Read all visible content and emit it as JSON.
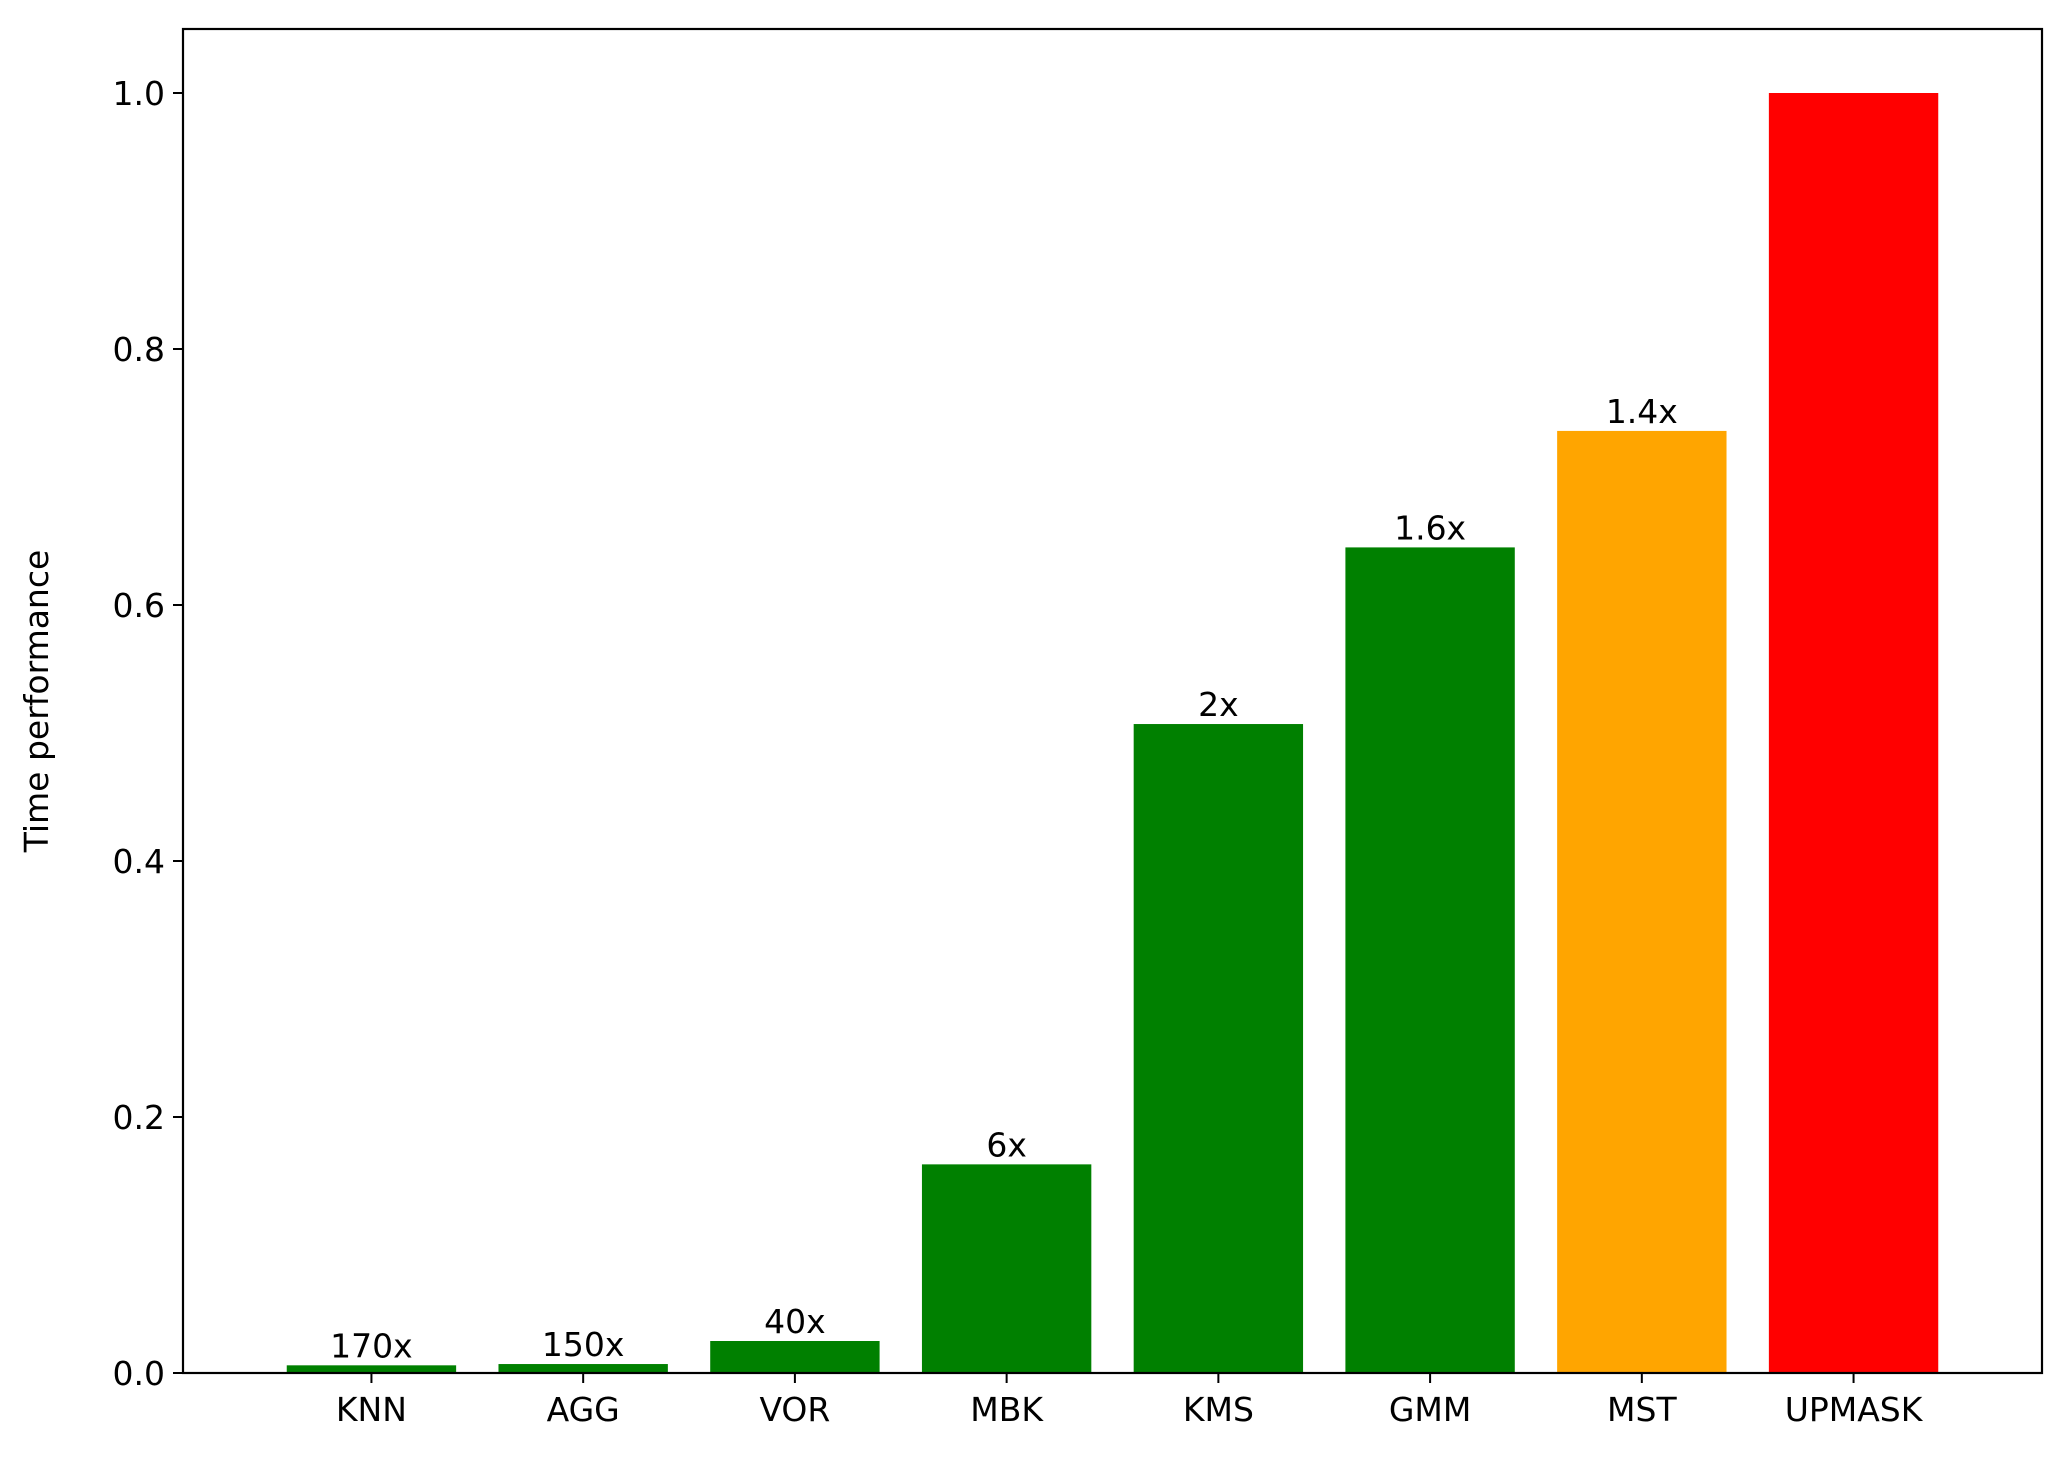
{
  "chart_data": {
    "type": "bar",
    "title": "",
    "xlabel": "",
    "ylabel": "Time performance",
    "ylim": [
      0,
      1.05
    ],
    "yticks": [
      0.0,
      0.2,
      0.4,
      0.6,
      0.8,
      1.0
    ],
    "ytick_labels": [
      "0.0",
      "0.2",
      "0.4",
      "0.6",
      "0.8",
      "1.0"
    ],
    "grid": false,
    "legend": "none",
    "categories": [
      "KNN",
      "AGG",
      "VOR",
      "MBK",
      "KMS",
      "GMM",
      "MST",
      "UPMASK"
    ],
    "values": [
      0.006,
      0.007,
      0.025,
      0.163,
      0.507,
      0.645,
      0.736,
      1.0
    ],
    "data_labels": [
      "170x",
      "150x",
      "40x",
      "6x",
      "2x",
      "1.6x",
      "1.4x",
      ""
    ],
    "colors": [
      "#008000",
      "#008000",
      "#008000",
      "#008000",
      "#008000",
      "#008000",
      "#FFA500",
      "#FF0000"
    ]
  }
}
